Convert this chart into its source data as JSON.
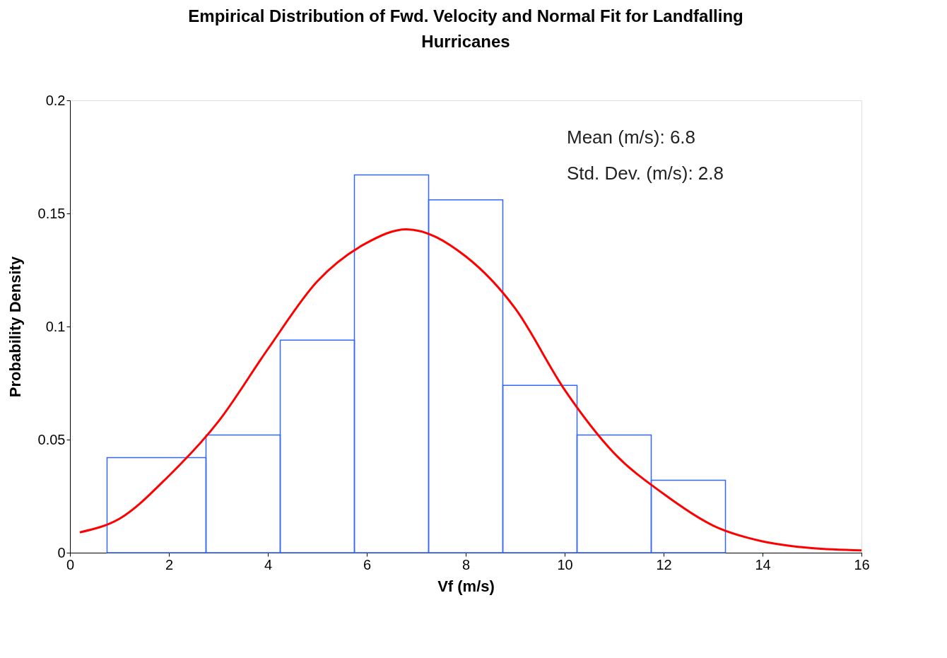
{
  "chart_data": {
    "type": "histogram",
    "title": "Empirical Distribution of Fwd. Velocity and Normal Fit for Landfalling Hurricanes",
    "xlabel": "Vf (m/s)",
    "ylabel": "Probability Density",
    "bins": [
      0.75,
      2.75,
      4.25,
      5.75,
      7.25,
      8.75,
      10.25,
      11.75,
      13.25
    ],
    "values": [
      0.042,
      0.052,
      0.094,
      0.167,
      0.156,
      0.074,
      0.052,
      0.032
    ],
    "color": "#3366ff",
    "series": [
      {
        "type": "line",
        "color": "#ff0000",
        "x": [
          0.2,
          1,
          2,
          3,
          4,
          5,
          6,
          6.8,
          8,
          9,
          10,
          11,
          12,
          13,
          14,
          15,
          16
        ],
        "values": [
          0.009,
          0.015,
          0.034,
          0.058,
          0.09,
          0.12,
          0.137,
          0.143,
          0.131,
          0.108,
          0.072,
          0.044,
          0.026,
          0.012,
          0.005,
          0.002,
          0.001
        ]
      }
    ],
    "annotations": [
      "Mean (m/s): 6.8",
      "Std. Dev. (m/s): 2.8"
    ],
    "xlim": [
      0,
      16
    ],
    "xticks": [
      0,
      2,
      4,
      6,
      8,
      10,
      12,
      14,
      16
    ],
    "ylim": [
      0,
      0.2
    ],
    "yticks": [
      0,
      0.05,
      0.1,
      0.15,
      0.2
    ],
    "grid": false
  }
}
